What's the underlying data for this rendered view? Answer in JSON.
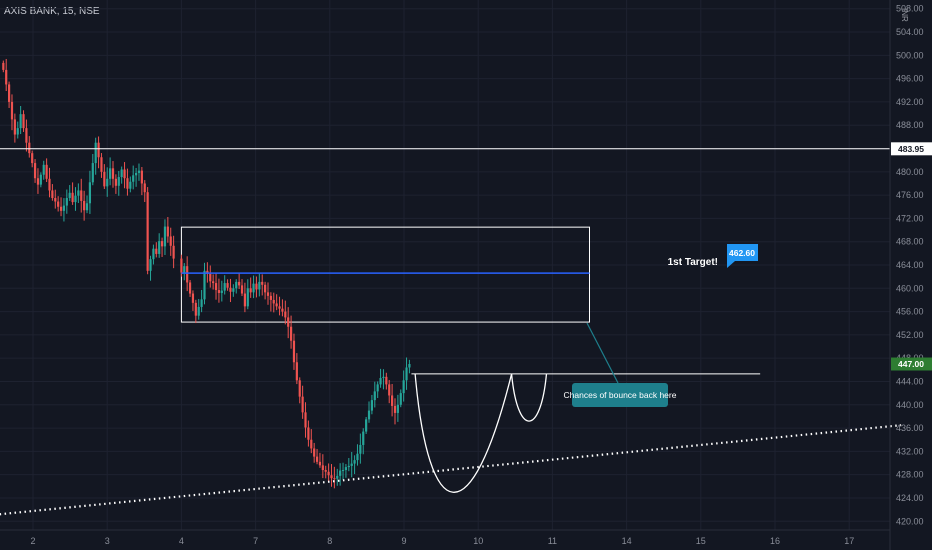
{
  "header": {
    "title": "AXIS BANK, 15, NSE",
    "currency": "INR"
  },
  "colors": {
    "background": "#131722",
    "grid": "#1e2230",
    "up": "#26a69a",
    "down": "#ef5350",
    "target_line": "#2962ff",
    "target_badge": "#2196f3",
    "note_bg": "#1e7f8c",
    "current_badge": "#2e7d32"
  },
  "chart_data": {
    "type": "candlestick",
    "title": "AXIS BANK, 15, NSE",
    "y_ticks": [
      "420.00",
      "424.00",
      "428.00",
      "432.00",
      "436.00",
      "440.00",
      "444.00",
      "448.00",
      "452.00",
      "456.00",
      "460.00",
      "464.00",
      "468.00",
      "472.00",
      "476.00",
      "480.00",
      "484.00",
      "488.00",
      "492.00",
      "496.00",
      "500.00",
      "504.00",
      "508.00"
    ],
    "ylim": [
      418.5,
      509.5
    ],
    "x_ticks": [
      "2",
      "3",
      "4",
      "7",
      "8",
      "9",
      "10",
      "11",
      "14",
      "15",
      "16",
      "17"
    ],
    "x_tick_index": [
      0,
      1,
      2,
      3,
      4,
      5,
      6,
      7,
      8,
      9,
      10,
      11
    ],
    "price_labels": {
      "resistance": "483.95",
      "target": "462.60",
      "current": "447.00"
    },
    "levels": {
      "resistance": 483.95,
      "target": 462.6,
      "neckline": 445.3,
      "zone_top": 470.5,
      "zone_bottom": 454.2
    },
    "zone_x": [
      2.0,
      7.5
    ],
    "neckline_x": [
      5.1,
      9.8
    ],
    "cup": {
      "x_start": 5.15,
      "x_bottom": 5.65,
      "x_end": 6.45,
      "low": 425.2
    },
    "handle": {
      "x_start": 6.45,
      "x_bottom": 6.68,
      "x_end": 6.92,
      "low": 437.0
    },
    "trendline": {
      "x": [
        -0.45,
        11.7
      ],
      "y": [
        421.2,
        436.5
      ]
    },
    "candle_start": -0.4,
    "candle_step": 0.0389,
    "candle_gaps": [
      [
        1.9,
        2.0
      ],
      [
        6.95,
        11.7
      ]
    ],
    "closes": [
      497.5,
      495.0,
      492.0,
      489.0,
      486.4,
      487.5,
      489.9,
      487.5,
      485.0,
      483.2,
      481.5,
      478.9,
      477.8,
      479.5,
      481.2,
      478.8,
      476.8,
      475.5,
      474.9,
      474.0,
      473.3,
      474.2,
      475.5,
      476.4,
      474.8,
      475.9,
      476.8,
      475.0,
      473.4,
      474.6,
      478.2,
      481.5,
      485.0,
      482.5,
      480.0,
      477.5,
      478.8,
      480.6,
      478.8,
      477.6,
      479.1,
      480.4,
      478.9,
      477.1,
      478.3,
      479.4,
      479.8,
      480.2,
      478.0,
      476.5,
      463.0,
      465.0,
      466.8,
      465.9,
      468.1,
      467.2,
      470.6,
      468.9,
      467.3,
      465.1,
      462.7,
      463.8,
      461.0,
      459.1,
      457.5,
      455.3,
      456.8,
      458.1,
      463.0,
      462.5,
      461.2,
      460.9,
      459.7,
      459.2,
      459.6,
      460.9,
      460.1,
      459.4,
      460.0,
      461.1,
      460.5,
      459.1,
      456.9,
      460.0,
      459.3,
      460.8,
      459.8,
      461.1,
      460.6,
      459.3,
      458.7,
      458.0,
      457.4,
      456.9,
      456.5,
      456.0,
      455.0,
      453.4,
      451.0,
      447.3,
      444.2,
      441.4,
      438.7,
      436.1,
      434.0,
      432.5,
      431.1,
      430.2,
      429.6,
      428.8,
      428.5,
      427.9,
      427.4,
      427.3,
      427.8,
      428.7,
      428.8,
      429.3,
      429.5,
      429.9,
      430.5,
      431.6,
      433.1,
      435.4,
      437.5,
      439.0,
      440.8,
      442.3,
      443.5,
      444.6,
      444.8,
      443.5,
      441.6,
      439.8,
      438.6,
      440.0,
      442.0,
      444.2,
      446.4,
      447.0
    ]
  }
}
